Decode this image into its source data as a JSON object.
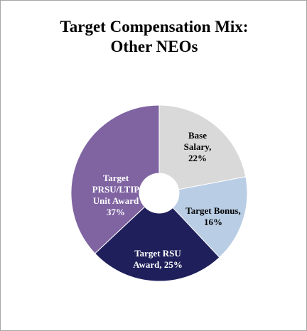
{
  "chart_data": {
    "type": "pie",
    "title": "Target Compensation Mix: Other NEOs",
    "categories": [
      "Base Salary,",
      "Target Bonus,",
      "Target RSU Award,",
      "Target PRSU/LTIP Unit Award"
    ],
    "values": [
      22,
      16,
      25,
      37
    ],
    "value_labels": [
      "22%",
      "16%",
      "25%",
      "37%"
    ],
    "colors": [
      "#d9d9d9",
      "#b9cde5",
      "#1f1f5b",
      "#8064a2"
    ]
  }
}
